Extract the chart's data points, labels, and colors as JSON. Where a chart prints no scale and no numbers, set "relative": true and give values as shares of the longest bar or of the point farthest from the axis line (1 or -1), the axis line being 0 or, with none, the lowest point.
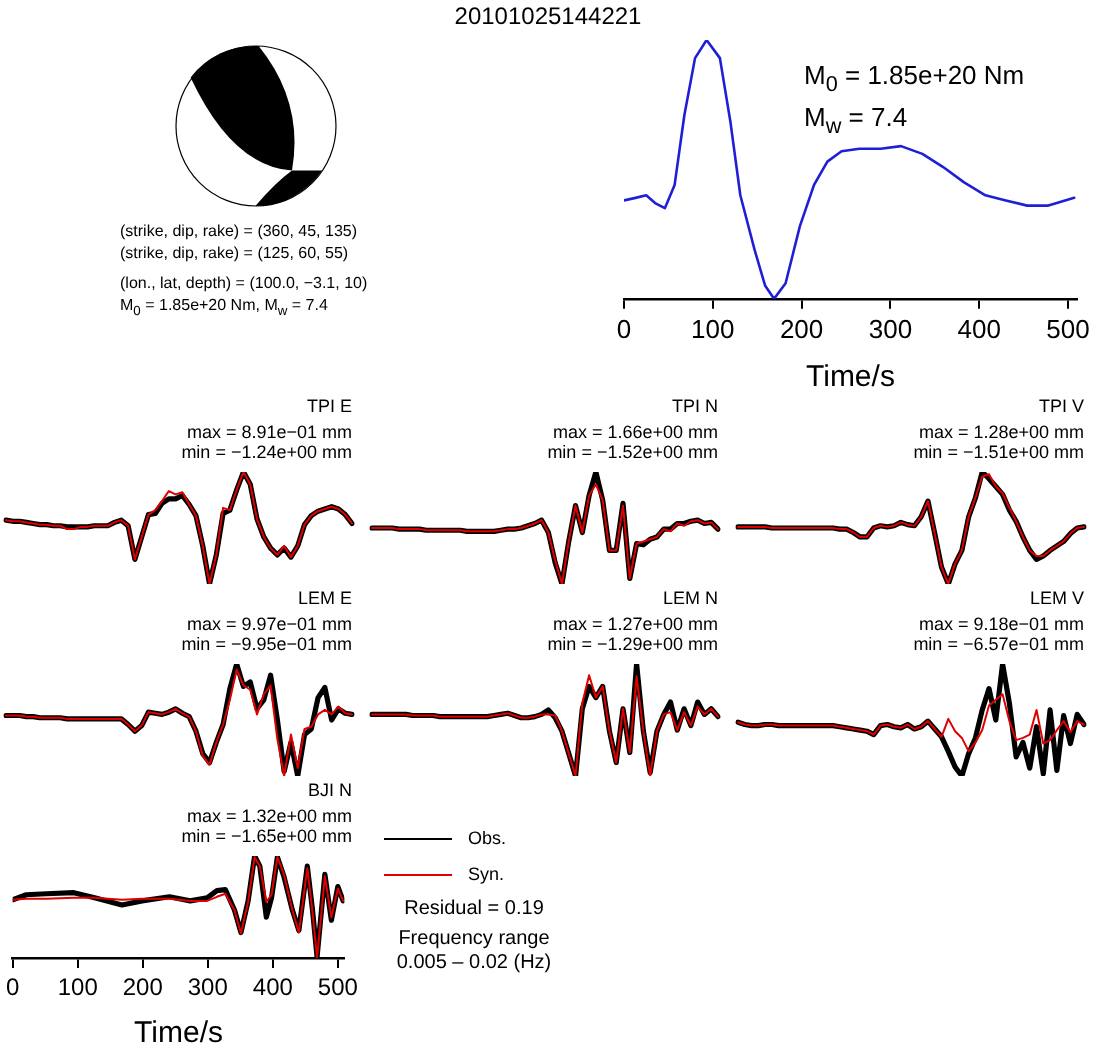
{
  "chart_data": [
    {
      "type": "other",
      "title": "20101025144221",
      "annotations": [
        "(strike, dip, rake) = (360, 45, 135)",
        "(strike, dip, rake) = (125, 60, 55)",
        "(lon., lat, depth) = (100.0, −3.1, 10)",
        "M$_{0}$ = 1.85e+20 Nm, M$_{w}$ = 7.4"
      ]
    },
    {
      "type": "line",
      "relative": true,
      "x": [
        0,
        13,
        25,
        35,
        46,
        57,
        68,
        80,
        93,
        108,
        120,
        131,
        147,
        159,
        169,
        182,
        198,
        214,
        229,
        245,
        265,
        289,
        312,
        336,
        359,
        383,
        407,
        430,
        454,
        477,
        507
      ],
      "series": [
        {
          "color": "#1f1fd6",
          "values": [
            0.38,
            0.39,
            0.4,
            0.37,
            0.35,
            0.44,
            0.71,
            0.93,
            1,
            0.93,
            0.68,
            0.4,
            0.19,
            0.05,
            0,
            0.06,
            0.28,
            0.44,
            0.53,
            0.57,
            0.58,
            0.58,
            0.59,
            0.56,
            0.51,
            0.45,
            0.4,
            0.38,
            0.36,
            0.36,
            0.39
          ]
        }
      ],
      "xlim": [
        0,
        510
      ],
      "xticks": [
        0,
        100,
        200,
        300,
        400,
        500
      ],
      "xlabel": "Time/s",
      "tick_labels": "x",
      "annotations": [
        "M$_{0}$ = 1.85e+20 Nm",
        "M$_{w}$ = 7.4"
      ]
    },
    {
      "type": "line",
      "relative": true,
      "title": "TPI E",
      "annotations": [
        "max = 8.91e−01 mm",
        "min = −1.24e+00 mm"
      ],
      "tick_labels": false,
      "categories": [
        null,
        null,
        null,
        null,
        null,
        null,
        null,
        null,
        null,
        null,
        null,
        null,
        null,
        null,
        null,
        null,
        null,
        null,
        null,
        null,
        null,
        null,
        null,
        null,
        null,
        null,
        null,
        null,
        null,
        null,
        null,
        null,
        null,
        null,
        null,
        null,
        null,
        null,
        null,
        null,
        null,
        null,
        null,
        null,
        null,
        null,
        null,
        null,
        null,
        null,
        null,
        null
      ],
      "series": [
        {
          "color": "#000000",
          "values": [
            0.57,
            0.56,
            0.56,
            0.55,
            0.54,
            0.53,
            0.53,
            0.52,
            0.52,
            0.51,
            0.51,
            0.51,
            0.51,
            0.52,
            0.52,
            0.52,
            0.55,
            0.57,
            0.52,
            0.22,
            0.42,
            0.62,
            0.63,
            0.72,
            0.76,
            0.76,
            0.79,
            0.71,
            0.61,
            0.34,
            0,
            0.26,
            0.63,
            0.66,
            0.84,
            1,
            0.89,
            0.58,
            0.42,
            0.32,
            0.26,
            0.32,
            0.24,
            0.34,
            0.53,
            0.61,
            0.65,
            0.67,
            0.69,
            0.67,
            0.62,
            0.54
          ]
        },
        {
          "color": "#e00000",
          "values": [
            0.57,
            0.56,
            0.56,
            0.55,
            0.54,
            0.53,
            0.53,
            0.52,
            0.52,
            0.49,
            0.49,
            0.51,
            0.51,
            0.52,
            0.52,
            0.52,
            0.55,
            0.57,
            0.52,
            0.22,
            0.42,
            0.62,
            0.66,
            0.74,
            0.83,
            0.8,
            0.82,
            0.71,
            0.61,
            0.34,
            0,
            0.26,
            0.68,
            0.66,
            0.84,
            1,
            0.89,
            0.58,
            0.42,
            0.32,
            0.26,
            0.34,
            0.24,
            0.34,
            0.53,
            0.61,
            0.65,
            0.67,
            0.69,
            0.67,
            0.62,
            0.54
          ]
        }
      ]
    },
    {
      "type": "line",
      "relative": true,
      "title": "TPI N",
      "annotations": [
        "max = 1.66e+00 mm",
        "min = −1.52e+00 mm"
      ],
      "tick_labels": false,
      "categories": [
        null,
        null,
        null,
        null,
        null,
        null,
        null,
        null,
        null,
        null,
        null,
        null,
        null,
        null,
        null,
        null,
        null,
        null,
        null,
        null,
        null,
        null,
        null,
        null,
        null,
        null,
        null,
        null,
        null,
        null,
        null,
        null,
        null,
        null,
        null,
        null,
        null,
        null,
        null,
        null,
        null,
        null,
        null,
        null,
        null,
        null,
        null,
        null,
        null,
        null,
        null,
        null
      ],
      "series": [
        {
          "color": "#000000",
          "values": [
            0.5,
            0.5,
            0.5,
            0.5,
            0.49,
            0.49,
            0.49,
            0.49,
            0.48,
            0.48,
            0.48,
            0.48,
            0.48,
            0.48,
            0.47,
            0.47,
            0.47,
            0.47,
            0.47,
            0.48,
            0.49,
            0.49,
            0.5,
            0.52,
            0.54,
            0.57,
            0.46,
            0.19,
            0,
            0.38,
            0.7,
            0.46,
            0.79,
            1,
            0.75,
            0.3,
            0.3,
            0.72,
            0.05,
            0.36,
            0.35,
            0.4,
            0.42,
            0.49,
            0.49,
            0.54,
            0.54,
            0.56,
            0.57,
            0.54,
            0.55,
            0.49
          ]
        },
        {
          "color": "#e00000",
          "values": [
            0.5,
            0.5,
            0.5,
            0.5,
            0.49,
            0.49,
            0.49,
            0.49,
            0.48,
            0.48,
            0.48,
            0.48,
            0.48,
            0.48,
            0.47,
            0.47,
            0.47,
            0.47,
            0.47,
            0.48,
            0.49,
            0.49,
            0.5,
            0.52,
            0.54,
            0.57,
            0.46,
            0.21,
            0,
            0.38,
            0.7,
            0.46,
            0.79,
            0.89,
            0.75,
            0.3,
            0.3,
            0.7,
            0.05,
            0.36,
            0.38,
            0.4,
            0.42,
            0.49,
            0.47,
            0.54,
            0.52,
            0.56,
            0.57,
            0.54,
            0.55,
            0.49
          ]
        }
      ]
    },
    {
      "type": "line",
      "relative": true,
      "title": "TPI V",
      "annotations": [
        "max = 1.28e+00 mm",
        "min = −1.51e+00 mm"
      ],
      "tick_labels": false,
      "categories": [
        null,
        null,
        null,
        null,
        null,
        null,
        null,
        null,
        null,
        null,
        null,
        null,
        null,
        null,
        null,
        null,
        null,
        null,
        null,
        null,
        null,
        null,
        null,
        null,
        null,
        null,
        null,
        null,
        null,
        null,
        null,
        null,
        null,
        null,
        null,
        null,
        null,
        null,
        null,
        null,
        null,
        null,
        null,
        null,
        null,
        null,
        null,
        null,
        null,
        null,
        null,
        null
      ],
      "series": [
        {
          "color": "#000000",
          "values": [
            0.51,
            0.51,
            0.51,
            0.51,
            0.51,
            0.5,
            0.5,
            0.5,
            0.5,
            0.5,
            0.5,
            0.5,
            0.5,
            0.5,
            0.5,
            0.49,
            0.49,
            0.46,
            0.42,
            0.42,
            0.5,
            0.52,
            0.51,
            0.52,
            0.55,
            0.53,
            0.52,
            0.6,
            0.74,
            0.45,
            0.15,
            0,
            0.18,
            0.3,
            0.6,
            0.77,
            1,
            0.94,
            0.87,
            0.8,
            0.66,
            0.56,
            0.42,
            0.3,
            0.22,
            0.25,
            0.3,
            0.34,
            0.38,
            0.45,
            0.5,
            0.51
          ]
        },
        {
          "color": "#e00000",
          "values": [
            0.51,
            0.51,
            0.51,
            0.51,
            0.51,
            0.5,
            0.5,
            0.5,
            0.5,
            0.5,
            0.5,
            0.5,
            0.5,
            0.5,
            0.5,
            0.49,
            0.49,
            0.46,
            0.42,
            0.42,
            0.5,
            0.52,
            0.51,
            0.52,
            0.55,
            0.53,
            0.52,
            0.6,
            0.74,
            0.45,
            0.15,
            0,
            0.18,
            0.3,
            0.6,
            0.77,
            0.96,
            0.98,
            0.87,
            0.81,
            0.68,
            0.56,
            0.42,
            0.3,
            0.25,
            0.25,
            0.3,
            0.34,
            0.38,
            0.45,
            0.5,
            0.51
          ]
        }
      ]
    },
    {
      "type": "line",
      "relative": true,
      "title": "LEM E",
      "annotations": [
        "max = 9.97e−01 mm",
        "min = −9.95e−01 mm"
      ],
      "tick_labels": false,
      "categories": [
        null,
        null,
        null,
        null,
        null,
        null,
        null,
        null,
        null,
        null,
        null,
        null,
        null,
        null,
        null,
        null,
        null,
        null,
        null,
        null,
        null,
        null,
        null,
        null,
        null,
        null,
        null,
        null,
        null,
        null,
        null,
        null,
        null,
        null,
        null,
        null,
        null,
        null,
        null,
        null,
        null,
        null,
        null,
        null,
        null,
        null,
        null,
        null,
        null,
        null,
        null,
        null
      ],
      "series": [
        {
          "color": "#000000",
          "values": [
            0.54,
            0.54,
            0.54,
            0.53,
            0.53,
            0.52,
            0.52,
            0.52,
            0.52,
            0.51,
            0.51,
            0.51,
            0.51,
            0.51,
            0.51,
            0.51,
            0.51,
            0.51,
            0.46,
            0.4,
            0.45,
            0.57,
            0.56,
            0.55,
            0.57,
            0.6,
            0.56,
            0.53,
            0.4,
            0.2,
            0.12,
            0.3,
            0.46,
            0.78,
            1,
            0.8,
            0.84,
            0.6,
            0.68,
            0.9,
            0.5,
            0.04,
            0.3,
            0,
            0.37,
            0.42,
            0.7,
            0.79,
            0.5,
            0.6,
            0.56,
            0.55
          ]
        },
        {
          "color": "#e00000",
          "values": [
            0.54,
            0.54,
            0.54,
            0.53,
            0.53,
            0.52,
            0.52,
            0.52,
            0.52,
            0.51,
            0.51,
            0.51,
            0.51,
            0.51,
            0.51,
            0.51,
            0.51,
            0.51,
            0.46,
            0.4,
            0.45,
            0.57,
            0.56,
            0.55,
            0.57,
            0.6,
            0.56,
            0.53,
            0.4,
            0.18,
            0.1,
            0.3,
            0.46,
            0.68,
            0.95,
            0.81,
            0.77,
            0.55,
            0.73,
            0.81,
            0.33,
            0,
            0.37,
            0.07,
            0.42,
            0.44,
            0.55,
            0.59,
            0.55,
            0.62,
            0.56,
            0.55
          ]
        }
      ]
    },
    {
      "type": "line",
      "relative": true,
      "title": "LEM N",
      "annotations": [
        "max = 1.27e+00 mm",
        "min = −1.29e+00 mm"
      ],
      "tick_labels": false,
      "categories": [
        null,
        null,
        null,
        null,
        null,
        null,
        null,
        null,
        null,
        null,
        null,
        null,
        null,
        null,
        null,
        null,
        null,
        null,
        null,
        null,
        null,
        null,
        null,
        null,
        null,
        null,
        null,
        null,
        null,
        null,
        null,
        null,
        null,
        null,
        null,
        null,
        null,
        null,
        null,
        null,
        null,
        null,
        null,
        null,
        null,
        null,
        null,
        null,
        null,
        null,
        null,
        null
      ],
      "series": [
        {
          "color": "#000000",
          "values": [
            0.55,
            0.55,
            0.55,
            0.55,
            0.55,
            0.55,
            0.54,
            0.54,
            0.54,
            0.54,
            0.53,
            0.53,
            0.53,
            0.53,
            0.53,
            0.53,
            0.53,
            0.53,
            0.54,
            0.55,
            0.56,
            0.54,
            0.52,
            0.52,
            0.53,
            0.55,
            0.59,
            0.52,
            0.4,
            0.2,
            0,
            0.6,
            0.8,
            0.7,
            0.8,
            0.4,
            0.12,
            0.6,
            0.21,
            1,
            0.4,
            0.03,
            0.4,
            0.55,
            0.66,
            0.41,
            0.6,
            0.45,
            0.66,
            0.55,
            0.6,
            0.53
          ]
        },
        {
          "color": "#e00000",
          "values": [
            0.55,
            0.55,
            0.55,
            0.55,
            0.55,
            0.55,
            0.54,
            0.54,
            0.54,
            0.54,
            0.53,
            0.53,
            0.53,
            0.53,
            0.53,
            0.53,
            0.53,
            0.53,
            0.54,
            0.55,
            0.56,
            0.54,
            0.52,
            0.52,
            0.53,
            0.55,
            0.55,
            0.54,
            0.4,
            0.2,
            0,
            0.65,
            0.9,
            0.7,
            0.8,
            0.4,
            0.12,
            0.6,
            0.21,
            0.89,
            0.4,
            0,
            0.4,
            0.55,
            0.57,
            0.41,
            0.57,
            0.45,
            0.62,
            0.55,
            0.6,
            0.53
          ]
        }
      ]
    },
    {
      "type": "line",
      "relative": true,
      "title": "LEM V",
      "annotations": [
        "max = 9.18e−01 mm",
        "min = −6.57e−01 mm"
      ],
      "tick_labels": false,
      "categories": [
        null,
        null,
        null,
        null,
        null,
        null,
        null,
        null,
        null,
        null,
        null,
        null,
        null,
        null,
        null,
        null,
        null,
        null,
        null,
        null,
        null,
        null,
        null,
        null,
        null,
        null,
        null,
        null,
        null,
        null,
        null,
        null,
        null,
        null,
        null,
        null,
        null,
        null,
        null,
        null,
        null,
        null,
        null,
        null,
        null,
        null,
        null,
        null,
        null,
        null,
        null,
        null
      ],
      "series": [
        {
          "color": "#000000",
          "values": [
            0.48,
            0.46,
            0.45,
            0.45,
            0.46,
            0.46,
            0.45,
            0.45,
            0.45,
            0.45,
            0.45,
            0.45,
            0.45,
            0.45,
            0.45,
            0.44,
            0.43,
            0.42,
            0.41,
            0.4,
            0.37,
            0.45,
            0.46,
            0.44,
            0.43,
            0.46,
            0.42,
            0.44,
            0.49,
            0.42,
            0.35,
            0.22,
            0.08,
            0,
            0.2,
            0.34,
            0.59,
            0.78,
            0.5,
            1,
            0.65,
            0.17,
            0.3,
            0.07,
            0.44,
            0.02,
            0.59,
            0.05,
            0.54,
            0.29,
            0.55,
            0.46
          ]
        },
        {
          "color": "#e00000",
          "values": [
            0.48,
            0.46,
            0.45,
            0.45,
            0.46,
            0.46,
            0.45,
            0.45,
            0.45,
            0.45,
            0.45,
            0.45,
            0.45,
            0.45,
            0.45,
            0.44,
            0.43,
            0.42,
            0.41,
            0.4,
            0.37,
            0.45,
            0.46,
            0.44,
            0.43,
            0.46,
            0.42,
            0.44,
            0.49,
            0.42,
            0.35,
            0.51,
            0.4,
            0.34,
            0.22,
            0.3,
            0.41,
            0.63,
            0.68,
            0.73,
            0.49,
            0.32,
            0.34,
            0.37,
            0.59,
            0.29,
            0.32,
            0.41,
            0.49,
            0.39,
            0.49,
            0.46
          ]
        }
      ]
    },
    {
      "type": "line",
      "relative": true,
      "title": "BJI N",
      "annotations": [
        "max = 1.32e+00 mm",
        "min = −1.65e+00 mm",
        "Residual = 0.19",
        "Frequency range",
        "0.005 – 0.02 (Hz)"
      ],
      "xlim": [
        0,
        510
      ],
      "xticks": [
        0,
        100,
        200,
        300,
        400,
        500
      ],
      "xlabel": "Time/s",
      "tick_labels": "x",
      "legend": "right",
      "x": [
        0,
        21,
        52,
        94,
        126,
        168,
        199,
        241,
        273,
        299,
        314,
        327,
        341,
        351,
        362,
        372,
        380,
        390,
        398,
        407,
        417,
        430,
        440,
        453,
        461,
        468,
        480,
        490,
        500,
        508
      ],
      "series": [
        {
          "name": "Obs.",
          "color": "#000000",
          "values": [
            0.57,
            0.62,
            0.63,
            0.64,
            0.59,
            0.52,
            0.56,
            0.6,
            0.56,
            0.59,
            0.66,
            0.67,
            0.47,
            0.25,
            0.56,
            1,
            0.9,
            0.4,
            0.59,
            0.99,
            0.8,
            0.47,
            0.27,
            0.9,
            0.47,
            0.01,
            0.82,
            0.37,
            0.7,
            0.56
          ]
        },
        {
          "name": "Syn.",
          "color": "#e00000",
          "values": [
            0.57,
            0.58,
            0.58,
            0.59,
            0.59,
            0.57,
            0.58,
            0.58,
            0.56,
            0.56,
            0.6,
            0.63,
            0.47,
            0.24,
            0.55,
            0.99,
            0.9,
            0.55,
            0.62,
            0.99,
            0.82,
            0.47,
            0.25,
            0.88,
            0.45,
            0,
            0.8,
            0.4,
            0.68,
            0.56
          ]
        }
      ]
    }
  ]
}
